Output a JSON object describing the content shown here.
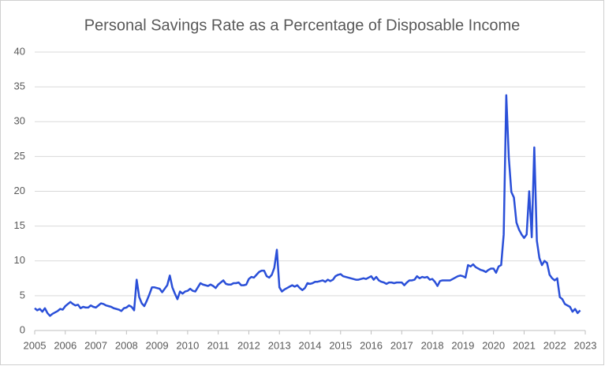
{
  "chart_data": {
    "type": "line",
    "title": "Personal Savings Rate as a Percentage of Disposable Income",
    "xlim": [
      2005,
      2023
    ],
    "xticks": [
      2005,
      2006,
      2007,
      2008,
      2009,
      2010,
      2011,
      2012,
      2013,
      2014,
      2015,
      2016,
      2017,
      2018,
      2019,
      2020,
      2021,
      2022,
      2023
    ],
    "ylim": [
      0,
      40
    ],
    "yticks": [
      0,
      5,
      10,
      15,
      20,
      25,
      30,
      35,
      40
    ],
    "grid": true,
    "x": [
      2005,
      2005.083,
      2005.167,
      2005.25,
      2005.333,
      2005.417,
      2005.5,
      2005.583,
      2005.667,
      2005.75,
      2005.833,
      2005.917,
      2006,
      2006.083,
      2006.167,
      2006.25,
      2006.333,
      2006.417,
      2006.5,
      2006.583,
      2006.667,
      2006.75,
      2006.833,
      2006.917,
      2007,
      2007.083,
      2007.167,
      2007.25,
      2007.333,
      2007.417,
      2007.5,
      2007.583,
      2007.667,
      2007.75,
      2007.833,
      2007.917,
      2008,
      2008.083,
      2008.167,
      2008.25,
      2008.333,
      2008.417,
      2008.5,
      2008.583,
      2008.667,
      2008.75,
      2008.833,
      2008.917,
      2009,
      2009.083,
      2009.167,
      2009.25,
      2009.333,
      2009.417,
      2009.5,
      2009.583,
      2009.667,
      2009.75,
      2009.833,
      2009.917,
      2010,
      2010.083,
      2010.167,
      2010.25,
      2010.333,
      2010.417,
      2010.5,
      2010.583,
      2010.667,
      2010.75,
      2010.833,
      2010.917,
      2011,
      2011.083,
      2011.167,
      2011.25,
      2011.333,
      2011.417,
      2011.5,
      2011.583,
      2011.667,
      2011.75,
      2011.833,
      2011.917,
      2012,
      2012.083,
      2012.167,
      2012.25,
      2012.333,
      2012.417,
      2012.5,
      2012.583,
      2012.667,
      2012.75,
      2012.833,
      2012.917,
      2013,
      2013.083,
      2013.167,
      2013.25,
      2013.333,
      2013.417,
      2013.5,
      2013.583,
      2013.667,
      2013.75,
      2013.833,
      2013.917,
      2014,
      2014.083,
      2014.167,
      2014.25,
      2014.333,
      2014.417,
      2014.5,
      2014.583,
      2014.667,
      2014.75,
      2014.833,
      2014.917,
      2015,
      2015.083,
      2015.167,
      2015.25,
      2015.333,
      2015.417,
      2015.5,
      2015.583,
      2015.667,
      2015.75,
      2015.833,
      2015.917,
      2016,
      2016.083,
      2016.167,
      2016.25,
      2016.333,
      2016.417,
      2016.5,
      2016.583,
      2016.667,
      2016.75,
      2016.833,
      2016.917,
      2017,
      2017.083,
      2017.167,
      2017.25,
      2017.333,
      2017.417,
      2017.5,
      2017.583,
      2017.667,
      2017.75,
      2017.833,
      2017.917,
      2018,
      2018.083,
      2018.167,
      2018.25,
      2018.333,
      2018.417,
      2018.5,
      2018.583,
      2018.667,
      2018.75,
      2018.833,
      2018.917,
      2019,
      2019.083,
      2019.167,
      2019.25,
      2019.333,
      2019.417,
      2019.5,
      2019.583,
      2019.667,
      2019.75,
      2019.833,
      2019.917,
      2020,
      2020.083,
      2020.167,
      2020.25,
      2020.333,
      2020.417,
      2020.5,
      2020.583,
      2020.667,
      2020.75,
      2020.833,
      2020.917,
      2021,
      2021.083,
      2021.167,
      2021.25,
      2021.333,
      2021.417,
      2021.5,
      2021.583,
      2021.667,
      2021.75,
      2021.833,
      2021.917,
      2022,
      2022.083,
      2022.167,
      2022.25,
      2022.333,
      2022.417,
      2022.5,
      2022.583,
      2022.667,
      2022.75,
      2022.833
    ],
    "series": [
      {
        "color": "#2a4fd8",
        "values": [
          3.2,
          2.9,
          3.1,
          2.7,
          3.2,
          2.5,
          2.1,
          2.4,
          2.6,
          2.8,
          3.1,
          3.0,
          3.5,
          3.8,
          4.1,
          3.8,
          3.6,
          3.7,
          3.2,
          3.4,
          3.3,
          3.3,
          3.6,
          3.4,
          3.3,
          3.6,
          3.9,
          3.8,
          3.6,
          3.5,
          3.4,
          3.2,
          3.1,
          3.0,
          2.8,
          3.2,
          3.3,
          3.6,
          3.4,
          2.9,
          7.3,
          4.8,
          3.9,
          3.5,
          4.3,
          5.2,
          6.2,
          6.2,
          6.1,
          6.0,
          5.5,
          6.0,
          6.5,
          7.9,
          6.2,
          5.3,
          4.5,
          5.6,
          5.3,
          5.6,
          5.7,
          6.0,
          5.7,
          5.6,
          6.2,
          6.8,
          6.6,
          6.5,
          6.4,
          6.6,
          6.4,
          6.1,
          6.6,
          6.9,
          7.2,
          6.7,
          6.6,
          6.6,
          6.8,
          6.8,
          6.9,
          6.5,
          6.5,
          6.6,
          7.4,
          7.7,
          7.6,
          8.0,
          8.4,
          8.6,
          8.6,
          7.8,
          7.6,
          8.0,
          9.0,
          11.6,
          6.2,
          5.6,
          5.9,
          6.1,
          6.3,
          6.5,
          6.3,
          6.5,
          6.1,
          5.8,
          6.1,
          6.8,
          6.7,
          6.8,
          7.0,
          7.0,
          7.1,
          7.2,
          7.0,
          7.3,
          7.1,
          7.3,
          7.8,
          8.0,
          8.1,
          7.8,
          7.7,
          7.6,
          7.5,
          7.4,
          7.3,
          7.3,
          7.4,
          7.5,
          7.4,
          7.6,
          7.8,
          7.3,
          7.7,
          7.2,
          7.0,
          6.9,
          6.7,
          6.9,
          6.9,
          6.8,
          6.9,
          6.9,
          6.9,
          6.5,
          6.9,
          7.2,
          7.2,
          7.3,
          7.8,
          7.5,
          7.7,
          7.6,
          7.7,
          7.3,
          7.4,
          7.0,
          6.4,
          7.1,
          7.2,
          7.2,
          7.2,
          7.2,
          7.4,
          7.6,
          7.8,
          7.9,
          7.8,
          7.6,
          9.4,
          9.2,
          9.5,
          9.1,
          8.9,
          8.7,
          8.6,
          8.4,
          8.7,
          8.9,
          8.9,
          8.3,
          9.2,
          9.4,
          13.8,
          33.8,
          24.8,
          19.9,
          19.1,
          15.5,
          14.5,
          13.8,
          13.3,
          13.8,
          20.0,
          13.4,
          26.3,
          12.9,
          10.4,
          9.4,
          10.0,
          9.7,
          8.0,
          7.5,
          7.2,
          7.5,
          4.8,
          4.5,
          3.8,
          3.6,
          3.4,
          2.7,
          3.1,
          2.5,
          2.9
        ]
      }
    ]
  }
}
